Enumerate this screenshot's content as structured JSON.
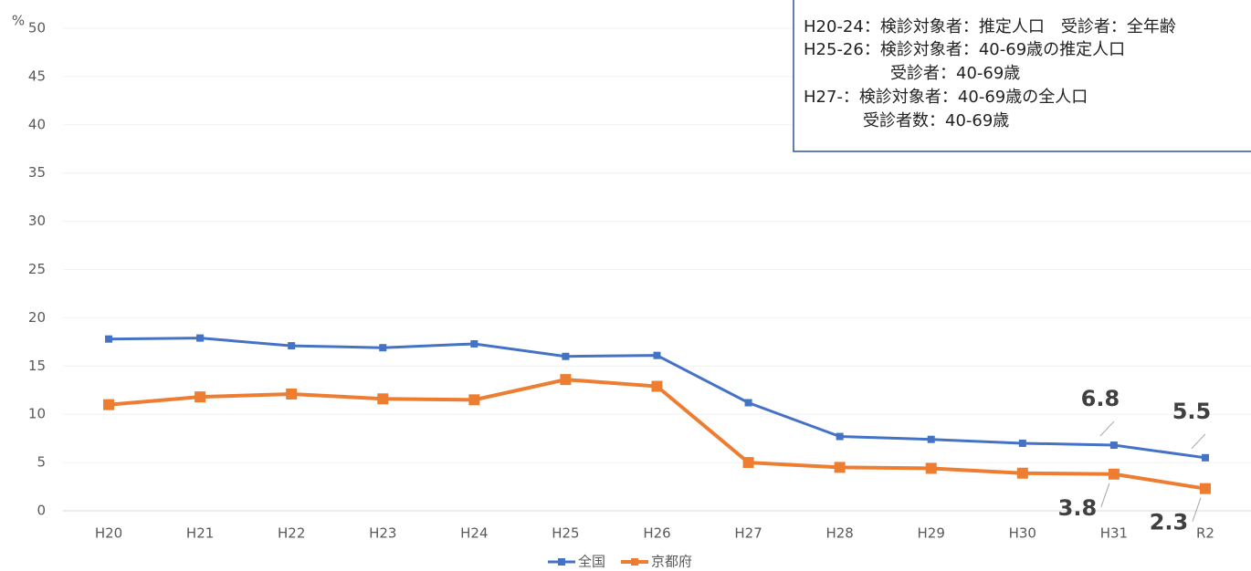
{
  "chart_data": {
    "type": "line",
    "y_unit": "%",
    "categories": [
      "H20",
      "H21",
      "H22",
      "H23",
      "H24",
      "H25",
      "H26",
      "H27",
      "H28",
      "H29",
      "H30",
      "H31",
      "R2"
    ],
    "series": [
      {
        "name": "全国",
        "color": "#4472c4",
        "values": [
          17.8,
          17.9,
          17.1,
          16.9,
          17.3,
          16.0,
          16.1,
          11.2,
          7.7,
          7.4,
          7.0,
          6.8,
          5.5
        ],
        "value_labels": [
          null,
          null,
          null,
          null,
          null,
          null,
          null,
          null,
          null,
          null,
          null,
          "6.8",
          "5.5"
        ]
      },
      {
        "name": "京都府",
        "color": "#ed7d31",
        "values": [
          11.0,
          11.8,
          12.1,
          11.6,
          11.5,
          13.6,
          12.9,
          5.0,
          4.5,
          4.4,
          3.9,
          3.8,
          2.3
        ],
        "value_labels": [
          null,
          null,
          null,
          null,
          null,
          null,
          null,
          null,
          null,
          null,
          null,
          "3.8",
          "2.3"
        ]
      }
    ],
    "ylim": [
      0,
      50
    ],
    "yticks": [
      0,
      5,
      10,
      15,
      20,
      25,
      30,
      35,
      40,
      45,
      50
    ],
    "grid": true,
    "legend": "bottom",
    "annotation": [
      "H20-24：検診対象者：推定人口　受診者：全年齢",
      "H25-26：検診対象者：40-69歳の推定人口",
      "受診者：40-69歳",
      "H27-：検診対象者：40-69歳の全人口",
      "受診者数：40-69歳"
    ]
  }
}
